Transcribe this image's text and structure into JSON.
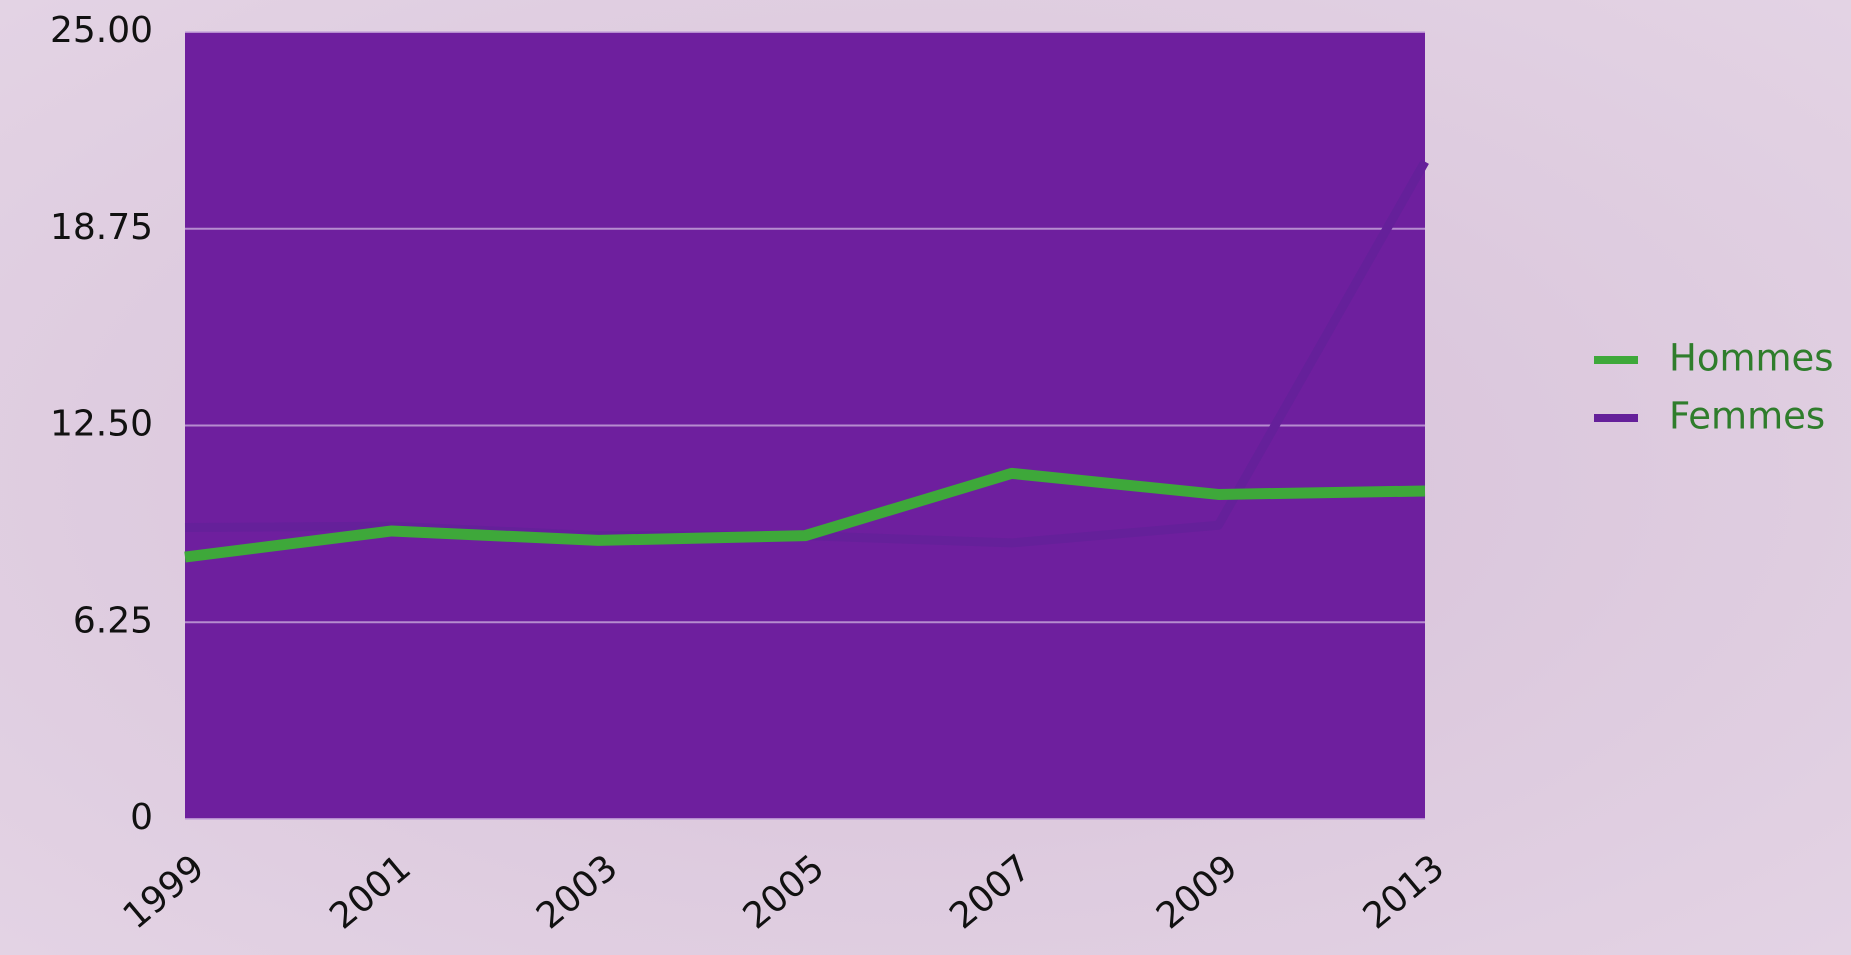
{
  "chart_data": {
    "type": "line",
    "categories": [
      "1999",
      "2001",
      "2003",
      "2005",
      "2007",
      "2009",
      "2013"
    ],
    "series": [
      {
        "name": "Hommes",
        "color": "#3ea83a",
        "values": [
          8.32,
          9.15,
          8.85,
          9.0,
          10.98,
          10.31,
          10.42
        ]
      },
      {
        "name": "Femmes",
        "color": "#65209a",
        "values": [
          9.26,
          9.3,
          9.0,
          9.0,
          8.77,
          9.33,
          20.88
        ]
      }
    ],
    "ylim": [
      0,
      25
    ],
    "yticks": [
      0,
      6.25,
      {
        "value": 12.5,
        "label": "12.50"
      },
      18.75,
      {
        "value": 25,
        "label": "25.00"
      }
    ],
    "grid": true,
    "legend": "right",
    "plot_color": "#6e1f9e"
  }
}
